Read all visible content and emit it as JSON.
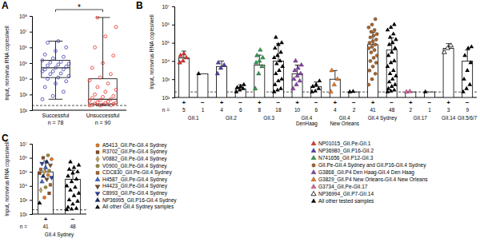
{
  "chart_data": [
    {
      "type": "box",
      "title": "A",
      "y_label": "Input, norovirus RNA copies/well",
      "categories": [
        "Successful",
        "Unsuccessful"
      ],
      "n_label": "n =",
      "n": [
        78,
        90
      ],
      "log": "y",
      "ylim": [
        100,
        100000000
      ],
      "yticks": [
        {
          "value": 100,
          "label": "10²"
        },
        {
          "value": 1000,
          "label": "10³"
        },
        {
          "value": 10000,
          "label": "10⁴"
        },
        {
          "value": 100000,
          "label": "10⁵"
        },
        {
          "value": 1000000,
          "label": "10⁶"
        },
        {
          "value": 10000000,
          "label": "10⁷"
        },
        {
          "value": 100000000,
          "label": "10⁸"
        }
      ],
      "boxes": [
        {
          "min": 500,
          "q1": 12000,
          "median": 50000,
          "q3": 150000,
          "max": 2500000
        },
        {
          "min": 200,
          "q1": 250,
          "median": 500,
          "q3": 10000,
          "max": 80000000
        }
      ],
      "points": [
        [
          500,
          800,
          1500,
          3000,
          5000,
          7000,
          10000,
          12000,
          15000,
          20000,
          22000,
          30000,
          30000,
          40000,
          40000,
          50000,
          60000,
          70000,
          80000,
          90000,
          110000,
          120000,
          150000,
          200000,
          250000,
          350000,
          600000,
          1000000,
          2000000,
          2500000
        ],
        [
          200,
          200,
          210,
          220,
          230,
          250,
          260,
          280,
          300,
          320,
          350,
          400,
          450,
          500,
          600,
          700,
          800,
          1000,
          1500,
          2000,
          3000,
          5000,
          8000,
          12000,
          20000,
          50000,
          100000,
          300000,
          1000000,
          5000000,
          20000000,
          80000000
        ]
      ],
      "colors": [
        "#3a3fa8",
        "#e2332b"
      ],
      "marker": "circle-open",
      "cutoff": 200,
      "annotation": "*"
    },
    {
      "type": "bar",
      "title": "B",
      "y_label": "Input, norovirus RNA copies/well",
      "categories": [
        "+",
        "−",
        "+",
        "−",
        "+",
        "−",
        "+",
        "−",
        "+",
        "−",
        "+",
        "−",
        "+",
        "−",
        "+",
        "−"
      ],
      "n_label": "n =",
      "n": [
        5,
        1,
        4,
        6,
        8,
        18,
        10,
        6,
        4,
        2,
        41,
        48,
        2,
        1,
        3,
        9
      ],
      "groups": [
        "GII.1",
        "GII.2",
        "GII.3",
        "GII.4 DenHaag",
        "GII.4 New Orleans",
        "GII.4 Sydney",
        "GII.17",
        "GII.14",
        "GII.5/6/7"
      ],
      "group_of": [
        0,
        0,
        1,
        1,
        2,
        2,
        3,
        3,
        4,
        4,
        5,
        5,
        6,
        6,
        7,
        8
      ],
      "log": "y",
      "ylim": [
        100,
        10000000
      ],
      "yticks": [
        {
          "value": 100,
          "label": "10²"
        },
        {
          "value": 1000,
          "label": "10³"
        },
        {
          "value": 10000,
          "label": "10⁴"
        },
        {
          "value": 100000,
          "label": "10⁵"
        },
        {
          "value": 1000000,
          "label": "10⁶"
        },
        {
          "value": 10000000,
          "label": "10⁷"
        }
      ],
      "values": [
        15000,
        2000,
        5000,
        300,
        6000,
        10000,
        2000,
        400,
        1000,
        200,
        80000,
        40000,
        200,
        200,
        50000,
        10000
      ],
      "errors": [
        20000,
        0,
        5000,
        200,
        15000,
        80000,
        4000,
        300,
        2000,
        0,
        300000,
        150000,
        0,
        0,
        40000,
        30000
      ],
      "points": [
        [
          8000,
          10000,
          15000,
          20000,
          25000
        ],
        [
          2000
        ],
        [
          2000,
          4000,
          6000,
          8000
        ],
        [
          200,
          250,
          300,
          350,
          400,
          500
        ],
        [
          300,
          2000,
          5000,
          8000,
          10000,
          15000,
          20000,
          40000
        ],
        [
          200,
          250,
          300,
          500,
          800,
          1000,
          2000,
          3000,
          5000,
          7000,
          10000,
          15000,
          20000,
          30000,
          50000,
          80000,
          100000,
          200000
        ],
        [
          300,
          500,
          800,
          1000,
          1500,
          2000,
          3000,
          4000,
          6000,
          10000
        ],
        [
          200,
          220,
          300,
          400,
          500,
          800
        ],
        [
          200,
          500,
          1000,
          3000
        ],
        [
          200,
          210
        ],
        [
          500,
          1000,
          2000,
          3000,
          5000,
          8000,
          10000,
          15000,
          20000,
          30000,
          40000,
          50000,
          60000,
          80000,
          100000,
          120000,
          150000,
          200000,
          250000,
          300000,
          400000,
          500000,
          700000,
          1000000,
          2000000
        ],
        [
          200,
          220,
          250,
          300,
          400,
          500,
          700,
          1000,
          1500,
          2000,
          3000,
          5000,
          8000,
          10000,
          20000,
          30000,
          50000,
          80000,
          100000,
          150000,
          200000,
          300000,
          500000,
          700000,
          1000000
        ],
        [
          200,
          210
        ],
        [
          200
        ],
        [
          30000,
          50000,
          70000
        ],
        [
          200,
          300,
          500,
          1000,
          3000,
          8000,
          20000,
          50000,
          60000
        ]
      ],
      "point_series": [
        0,
        8,
        1,
        8,
        2,
        8,
        4,
        8,
        5,
        8,
        3,
        8,
        6,
        8,
        7,
        8
      ],
      "series": [
        {
          "name": "NP01015_GII.Pe-GII.1",
          "color": "#e8312a",
          "marker": "triangle"
        },
        {
          "name": "NP36980_GII.P16-GII.2",
          "color": "#4b3fb0",
          "marker": "triangle"
        },
        {
          "name": "N741656_GII.P12-GII.3",
          "color": "#2e9e4a",
          "marker": "triangle"
        },
        {
          "name": "GII.Pe-GII.4 Sydney and GII.P16-GII.4 Sydney",
          "color": "#a8642a",
          "marker": "circle"
        },
        {
          "name": "G3868_GII.P4 Den Haag-GII.4 Den Haag",
          "color": "#8b3fa8",
          "marker": "triangle"
        },
        {
          "name": "G3829_GII.P4 New Orleans-GII.4 New Orleans",
          "color": "#e87722",
          "marker": "triangle"
        },
        {
          "name": "G3734_GII.Pe-GII.17",
          "color": "#e0609a",
          "marker": "triangle"
        },
        {
          "name": "NP36994_GII.P7-GII.14",
          "color": "#000000",
          "marker": "triangle-open"
        },
        {
          "name": "All other tested samples",
          "color": "#000000",
          "marker": "triangle"
        }
      ],
      "cutoff": 200
    },
    {
      "type": "bar",
      "title": "C",
      "y_label": "Input, norovirus RNA copies/well",
      "categories": [
        "+",
        "−"
      ],
      "n_label": "n =",
      "n": [
        41,
        48
      ],
      "groups": [
        "GII.4 Sydney"
      ],
      "group_of": [
        0,
        0
      ],
      "log": "y",
      "ylim": [
        100,
        10000000
      ],
      "yticks": [
        {
          "value": 100,
          "label": "10²"
        },
        {
          "value": 1000,
          "label": "10³"
        },
        {
          "value": 10000,
          "label": "10⁴"
        },
        {
          "value": 100000,
          "label": "10⁵"
        },
        {
          "value": 1000000,
          "label": "10⁶"
        },
        {
          "value": 10000000,
          "label": "10⁷"
        }
      ],
      "values": [
        100000,
        30000
      ],
      "errors": [
        500000,
        100000
      ],
      "points": [
        [
          600,
          1500,
          3000,
          5000,
          8000,
          12000,
          20000,
          30000,
          40000,
          50000,
          60000,
          80000,
          100000,
          120000,
          150000,
          200000,
          300000,
          400000,
          500000,
          800000,
          1000000,
          1500000
        ],
        [
          200,
          220,
          250,
          300,
          500,
          800,
          1000,
          2000,
          3000,
          5000,
          8000,
          10000,
          20000,
          30000,
          50000,
          80000,
          100000,
          150000,
          200000,
          300000,
          500000
        ]
      ],
      "point_series": [
        [
          9,
          0,
          1,
          2,
          3,
          4,
          5,
          6,
          7,
          8,
          0,
          1,
          2,
          3,
          4,
          5,
          6,
          7,
          8,
          0,
          1,
          3
        ],
        [
          9,
          9,
          9,
          9,
          9,
          9,
          9,
          9,
          9,
          9,
          9,
          9,
          9,
          9,
          9,
          9,
          9,
          9,
          9,
          9,
          9
        ]
      ],
      "series": [
        {
          "name": "A5413_GII.Pe-GII.4 Sydney",
          "color": "#e87722",
          "marker": "circle"
        },
        {
          "name": "R3702_GII.Pe-GII.4 Sydney",
          "color": "#8a4b1f",
          "marker": "square"
        },
        {
          "name": "V0882_GII.Pe-GII.4 Sydney",
          "color": "#c9a15a",
          "marker": "diamond"
        },
        {
          "name": "V0900_GII.Pe-GII.4 Sydney",
          "color": "#9a8a3a",
          "marker": "circle"
        },
        {
          "name": "CDC830_GII.Pe-GII.4 Sydney",
          "color": "#a8642a",
          "marker": "square"
        },
        {
          "name": "H4587_GII.Pe-GII.4 Sydney",
          "color": "#3a5fc8",
          "marker": "triangle"
        },
        {
          "name": "H4423_GII.Pe-GII.4 Sydney",
          "color": "#7a4a2a",
          "marker": "triangle-down"
        },
        {
          "name": "C8993_GII.Pe-GII.4 Sydney",
          "color": "#2a3fa0",
          "marker": "triangle-down"
        },
        {
          "name": "NP36995_GII.P16-GII.4 Sydney",
          "color": "#1a2a6a",
          "marker": "triangle"
        },
        {
          "name": "All other GII.4 Sydney samples",
          "color": "#000000",
          "marker": "triangle"
        }
      ],
      "cutoff": 200
    }
  ]
}
